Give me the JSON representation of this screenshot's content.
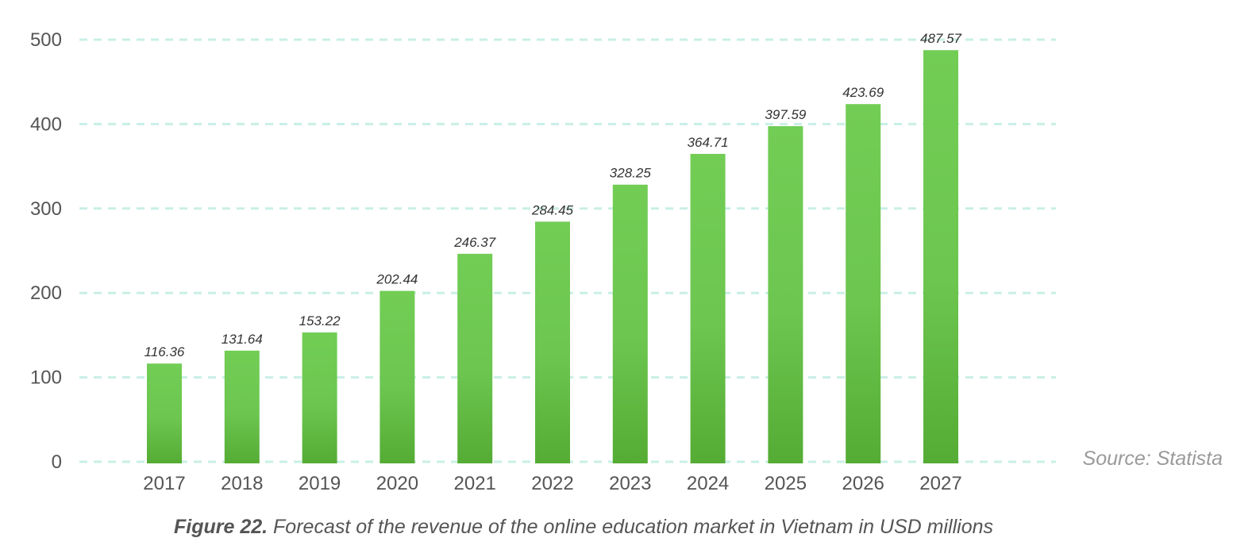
{
  "chart_data": {
    "type": "bar",
    "categories": [
      "2017",
      "2018",
      "2019",
      "2020",
      "2021",
      "2022",
      "2023",
      "2024",
      "2025",
      "2026",
      "2027"
    ],
    "values": [
      116.36,
      131.64,
      153.22,
      202.44,
      246.37,
      284.45,
      328.25,
      364.71,
      397.59,
      423.69,
      487.57
    ],
    "data_labels": [
      "116.36",
      "131.64",
      "153.22",
      "202.44",
      "246.37",
      "284.45",
      "328.25",
      "364.71",
      "397.59",
      "423.69",
      "487.57"
    ],
    "y_ticks": [
      "0",
      "100",
      "200",
      "300",
      "400",
      "500"
    ],
    "ylim": [
      0,
      500
    ],
    "grid": true,
    "bar_color_top": "#72cd55",
    "bar_color_bottom": "#55ac34",
    "grid_color": "#c9efe6",
    "title": "",
    "xlabel": "",
    "ylabel": ""
  },
  "source": "Source: Statista",
  "caption": {
    "label": "Figure 22.",
    "text": " Forecast of the revenue of the online education market in Vietnam in USD millions"
  }
}
